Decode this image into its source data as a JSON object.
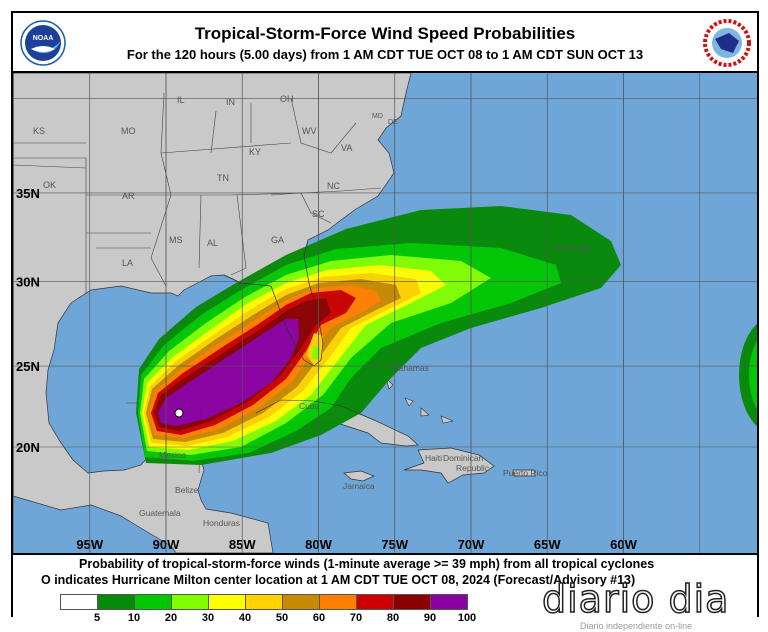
{
  "header": {
    "title": "Tropical-Storm-Force Wind Speed Probabilities",
    "subtitle": "For the 120 hours (5.00 days) from 1 AM CDT TUE OCT 08 to 1 AM CDT SUN OCT 13",
    "left_logo": "NOAA",
    "right_logo": "NATIONAL WEATHER SERVICE"
  },
  "map": {
    "lon_ticks": [
      "95W",
      "90W",
      "85W",
      "80W",
      "75W",
      "70W",
      "65W",
      "60W"
    ],
    "lat_ticks": [
      "35N",
      "30N",
      "25N",
      "20N"
    ],
    "states": [
      "KS",
      "MO",
      "IL",
      "IN",
      "OH",
      "WV",
      "KY",
      "VA",
      "MD",
      "DE",
      "OK",
      "AR",
      "TN",
      "NC",
      "SC",
      "MS",
      "AL",
      "GA",
      "LA"
    ],
    "places": [
      "Bermuda",
      "Bahamas",
      "Cuba",
      "Mexico",
      "Belize",
      "Guatemala",
      "Honduras",
      "Jamaica",
      "Haiti",
      "Dominican",
      "Republic",
      "Puerto Rico"
    ],
    "colors": {
      "ocean": "#6fa6d8",
      "land": "#c9c9c9",
      "grid": "#555555"
    },
    "storm_marker": "Hurricane Milton center location"
  },
  "legend": {
    "line1": "Probability of tropical-storm-force winds (1-minute average >= 39 mph) from all tropical cyclones",
    "line2": "O indicates Hurricane Milton center location at 1 AM CDT TUE OCT 08, 2024 (Forecast/Advisory #13)",
    "levels": [
      "5",
      "10",
      "20",
      "30",
      "40",
      "50",
      "60",
      "70",
      "80",
      "90",
      "100"
    ],
    "colors": [
      "#ffffff",
      "#078a07",
      "#00c800",
      "#80ff00",
      "#ffff00",
      "#ffd200",
      "#c88a00",
      "#ff8000",
      "#cc0000",
      "#8b0000",
      "#8b00a0"
    ]
  },
  "watermark": {
    "brand": "diario dia",
    "tagline": "Diario independiente on-line"
  }
}
